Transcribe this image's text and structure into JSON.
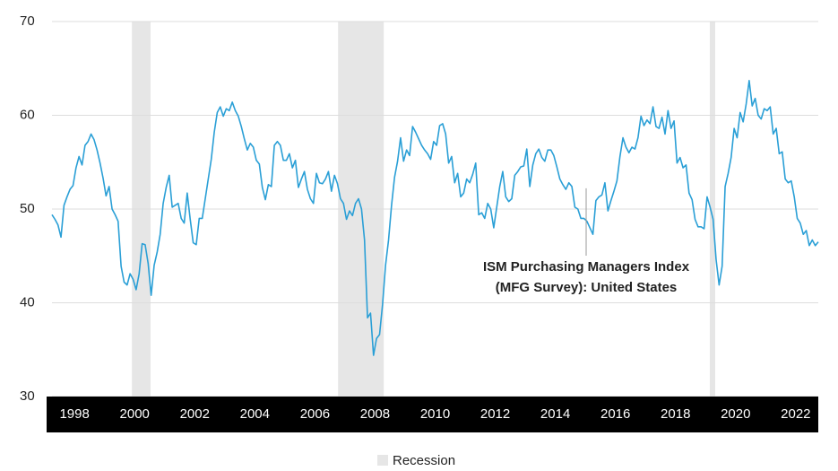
{
  "chart_data": {
    "type": "line",
    "xlim": [
      1997.25,
      2022.75
    ],
    "xticks": [
      1998,
      2000,
      2002,
      2004,
      2006,
      2008,
      2010,
      2012,
      2014,
      2016,
      2018,
      2020,
      2022
    ],
    "ylim": [
      30,
      70
    ],
    "yticks": [
      30,
      40,
      50,
      60,
      70
    ],
    "grid": true,
    "recession_color": "#e6e6e6",
    "recessions": [
      [
        1999.91,
        2000.53
      ],
      [
        2006.77,
        2008.29
      ],
      [
        2019.14,
        2019.32
      ]
    ],
    "legend": {
      "label": "Recession",
      "position": "bottom"
    },
    "x": [
      1997.25,
      1997.35,
      1997.45,
      1997.55,
      1997.65,
      1997.75,
      1997.85,
      1997.95,
      1998.05,
      1998.15,
      1998.25,
      1998.35,
      1998.45,
      1998.55,
      1998.65,
      1998.75,
      1998.85,
      1998.95,
      1999.05,
      1999.15,
      1999.25,
      1999.35,
      1999.45,
      1999.55,
      1999.65,
      1999.75,
      1999.85,
      1999.95,
      2000.05,
      2000.15,
      2000.25,
      2000.35,
      2000.45,
      2000.55,
      2000.65,
      2000.75,
      2000.85,
      2000.95,
      2001.05,
      2001.15,
      2001.25,
      2001.35,
      2001.45,
      2001.55,
      2001.65,
      2001.75,
      2001.85,
      2001.95,
      2002.05,
      2002.15,
      2002.25,
      2002.35,
      2002.45,
      2002.55,
      2002.65,
      2002.75,
      2002.85,
      2002.95,
      2003.05,
      2003.15,
      2003.25,
      2003.35,
      2003.45,
      2003.55,
      2003.65,
      2003.75,
      2003.85,
      2003.95,
      2004.05,
      2004.15,
      2004.25,
      2004.35,
      2004.45,
      2004.55,
      2004.65,
      2004.75,
      2004.85,
      2004.95,
      2005.05,
      2005.15,
      2005.25,
      2005.35,
      2005.45,
      2005.55,
      2005.65,
      2005.75,
      2005.85,
      2005.95,
      2006.05,
      2006.15,
      2006.25,
      2006.35,
      2006.45,
      2006.55,
      2006.65,
      2006.75,
      2006.85,
      2006.95,
      2007.05,
      2007.15,
      2007.25,
      2007.35,
      2007.45,
      2007.55,
      2007.65,
      2007.75,
      2007.85,
      2007.95,
      2008.05,
      2008.15,
      2008.25,
      2008.35,
      2008.45,
      2008.55,
      2008.65,
      2008.75,
      2008.85,
      2008.95,
      2009.05,
      2009.15,
      2009.25,
      2009.35,
      2009.45,
      2009.55,
      2009.65,
      2009.75,
      2009.85,
      2009.95,
      2010.05,
      2010.15,
      2010.25,
      2010.35,
      2010.45,
      2010.55,
      2010.65,
      2010.75,
      2010.85,
      2010.95,
      2011.05,
      2011.15,
      2011.25,
      2011.35,
      2011.45,
      2011.55,
      2011.65,
      2011.75,
      2011.85,
      2011.95,
      2012.05,
      2012.15,
      2012.25,
      2012.35,
      2012.45,
      2012.55,
      2012.65,
      2012.75,
      2012.85,
      2012.95,
      2013.05,
      2013.15,
      2013.25,
      2013.35,
      2013.45,
      2013.55,
      2013.65,
      2013.75,
      2013.85,
      2013.95,
      2014.05,
      2014.15,
      2014.25,
      2014.35,
      2014.45,
      2014.55,
      2014.65,
      2014.75,
      2014.85,
      2014.95,
      2015.05,
      2015.15,
      2015.25,
      2015.35,
      2015.45,
      2015.55,
      2015.65,
      2015.75,
      2015.85,
      2015.95,
      2016.05,
      2016.15,
      2016.25,
      2016.35,
      2016.45,
      2016.55,
      2016.65,
      2016.75,
      2016.85,
      2016.95,
      2017.05,
      2017.15,
      2017.25,
      2017.35,
      2017.45,
      2017.55,
      2017.65,
      2017.75,
      2017.85,
      2017.95,
      2018.05,
      2018.15,
      2018.25,
      2018.35,
      2018.45,
      2018.55,
      2018.65,
      2018.75,
      2018.85,
      2018.95,
      2019.05,
      2019.15,
      2019.25,
      2019.35,
      2019.45,
      2019.55,
      2019.65,
      2019.75,
      2019.85,
      2019.95,
      2020.05,
      2020.15,
      2020.25,
      2020.35,
      2020.45,
      2020.55,
      2020.65,
      2020.75,
      2020.85,
      2020.95,
      2021.05,
      2021.15,
      2021.25,
      2021.35,
      2021.45,
      2021.55,
      2021.65,
      2021.75,
      2021.85,
      2021.95,
      2022.05,
      2022.15,
      2022.25,
      2022.35,
      2022.45,
      2022.55,
      2022.65,
      2022.75
    ],
    "series": [
      {
        "name": [
          "ISM Purchasing Managers Index",
          "(MFG Survey): United States"
        ],
        "color": "#2a9fd6",
        "values": [
          49.4,
          48.9,
          48.3,
          47.0,
          50.4,
          51.3,
          52.1,
          52.5,
          54.4,
          55.6,
          54.7,
          56.8,
          57.2,
          58.0,
          57.4,
          56.3,
          54.9,
          53.3,
          51.4,
          52.4,
          50.0,
          49.4,
          48.7,
          43.9,
          42.2,
          41.9,
          43.1,
          42.5,
          41.4,
          43.1,
          46.3,
          46.2,
          44.2,
          40.8,
          44.0,
          45.4,
          47.3,
          50.6,
          52.3,
          53.6,
          50.2,
          50.4,
          50.6,
          49.0,
          48.5,
          51.7,
          48.9,
          46.4,
          46.2,
          49.0,
          49.0,
          51.1,
          53.2,
          55.3,
          58.2,
          60.3,
          60.9,
          59.9,
          60.7,
          60.5,
          61.4,
          60.5,
          59.9,
          58.8,
          57.5,
          56.3,
          57.0,
          56.6,
          55.2,
          54.8,
          52.3,
          51.0,
          52.6,
          52.4,
          56.8,
          57.2,
          56.8,
          55.2,
          55.2,
          55.9,
          54.4,
          55.2,
          52.3,
          53.2,
          54.0,
          52.1,
          51.1,
          50.6,
          53.8,
          52.8,
          52.7,
          53.2,
          54.0,
          51.9,
          53.6,
          52.7,
          51.1,
          50.6,
          48.9,
          49.8,
          49.3,
          50.6,
          51.1,
          50.0,
          46.7,
          38.4,
          38.9,
          34.4,
          36.2,
          36.6,
          39.8,
          44.0,
          46.7,
          50.4,
          53.4,
          55.1,
          57.6,
          55.1,
          56.3,
          55.7,
          58.8,
          58.2,
          57.5,
          56.8,
          56.3,
          55.9,
          55.3,
          57.2,
          56.8,
          58.9,
          59.1,
          58.0,
          54.9,
          55.6,
          52.8,
          53.8,
          51.3,
          51.7,
          53.2,
          52.8,
          53.7,
          54.9,
          49.4,
          49.6,
          49.0,
          50.6,
          50.0,
          48.0,
          50.2,
          52.4,
          54.0,
          51.3,
          50.8,
          51.1,
          53.6,
          54.0,
          54.5,
          54.6,
          56.4,
          52.4,
          54.7,
          55.9,
          56.4,
          55.5,
          55.1,
          56.3,
          56.3,
          55.7,
          54.5,
          53.2,
          52.6,
          52.1,
          52.8,
          52.4,
          50.2,
          50.0,
          49.0,
          49.0,
          48.7,
          48.0,
          47.3,
          50.9,
          51.3,
          51.5,
          52.8,
          49.8,
          50.9,
          51.9,
          53.0,
          55.6,
          57.6,
          56.6,
          56.0,
          56.6,
          56.4,
          57.6,
          59.9,
          58.9,
          59.5,
          59.1,
          60.9,
          58.8,
          58.6,
          59.8,
          58.0,
          60.5,
          58.6,
          59.4,
          54.9,
          55.5,
          54.4,
          54.7,
          51.7,
          51.0,
          48.9,
          48.1,
          48.1,
          47.9,
          51.3,
          50.2,
          48.9,
          44.6,
          41.9,
          43.9,
          52.4,
          53.8,
          55.5,
          58.6,
          57.6,
          60.3,
          59.3,
          61.2,
          63.7,
          61.0,
          61.8,
          60.0,
          59.6,
          60.7,
          60.5,
          60.9,
          58.0,
          58.6,
          55.9,
          56.1,
          53.2,
          52.8,
          53.0,
          51.3,
          49.0,
          48.5,
          47.3,
          47.7,
          46.1,
          46.7,
          46.1,
          46.5
        ]
      }
    ]
  }
}
